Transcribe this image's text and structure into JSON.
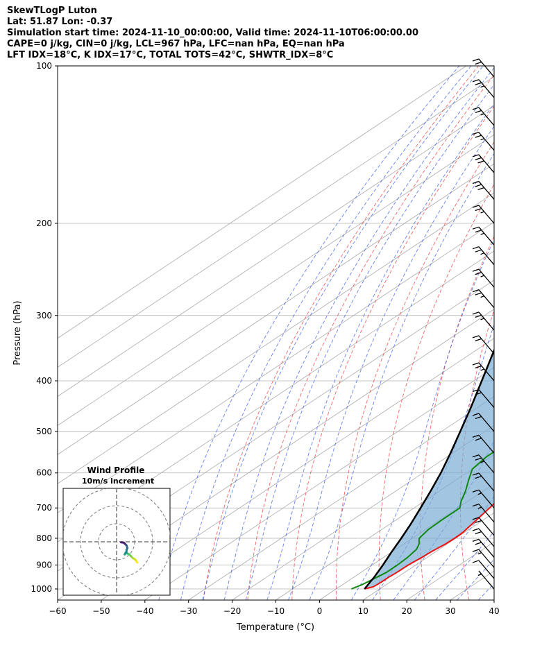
{
  "header": {
    "title": "SkewTLogP Luton",
    "location": "Lat: 51.87   Lon: -0.37",
    "time": "Simulation start time: 2024-11-10_00:00:00, Valid time: 2024-11-10T06:00:00.00",
    "params1": "CAPE=0 j/kg, CIN=0 j/kg, LCL=967 hPa, LFC=nan hPa, EQ=nan hPa",
    "params2": "LFT IDX=18°C, K IDX=17°C, TOTAL TOTS=42°C, SHWTR_IDX=8°C"
  },
  "chart_data": {
    "type": "skewt",
    "xlabel": "Temperature (°C)",
    "ylabel": "Pressure (hPa)",
    "xlim": [
      -60,
      40
    ],
    "ylim": [
      1050,
      100
    ],
    "x_ticks": [
      -60,
      -50,
      -40,
      -30,
      -20,
      -10,
      0,
      10,
      20,
      30,
      40
    ],
    "x_tick_labels": [
      "−60",
      "−50",
      "−40",
      "−30",
      "−20",
      "−10",
      "0",
      "10",
      "20",
      "30",
      "40"
    ],
    "p_ticks": [
      100,
      200,
      300,
      400,
      500,
      600,
      700,
      800,
      900,
      1000
    ],
    "p_tick_labels": [
      "100",
      "200",
      "300",
      "400",
      "500",
      "600",
      "700",
      "800",
      "900",
      "1000"
    ],
    "grid": true,
    "series": [
      {
        "color": "#ee1111",
        "values": [
          [
            1000,
            6.5
          ],
          [
            990,
            7.8
          ],
          [
            970,
            8.0
          ],
          [
            950,
            8.0
          ],
          [
            930,
            8.2
          ],
          [
            900,
            8.3
          ],
          [
            870,
            8.8
          ],
          [
            850,
            9.0
          ],
          [
            820,
            9.6
          ],
          [
            800,
            9.7
          ],
          [
            780,
            9.6
          ],
          [
            750,
            8.8
          ],
          [
            700,
            7.3
          ],
          [
            650,
            5.7
          ],
          [
            600,
            4.5
          ],
          [
            560,
            3.5
          ],
          [
            520,
            2.0
          ],
          [
            480,
            0.2
          ],
          [
            450,
            -1.3
          ],
          [
            400,
            -4.0
          ],
          [
            350,
            -8.0
          ],
          [
            320,
            -11.0
          ],
          [
            300,
            -13.0
          ],
          [
            280,
            -15.0
          ],
          [
            265,
            -15.8
          ],
          [
            250,
            -16.8
          ],
          [
            235,
            -17.5
          ],
          [
            220,
            -18.2
          ],
          [
            210,
            -18.3
          ],
          [
            200,
            -19.0
          ],
          [
            180,
            -20.3
          ],
          [
            160,
            -21.9
          ],
          [
            140,
            -23.7
          ],
          [
            125,
            -26.0
          ],
          [
            110,
            -27.0
          ],
          [
            100,
            -28.0
          ]
        ]
      },
      {
        "color": "#118811",
        "values": [
          [
            1000,
            3.5
          ],
          [
            980,
            4.5
          ],
          [
            960,
            5.0
          ],
          [
            930,
            5.8
          ],
          [
            900,
            5.8
          ],
          [
            870,
            5.5
          ],
          [
            840,
            4.8
          ],
          [
            820,
            3.5
          ],
          [
            800,
            1.6
          ],
          [
            770,
            0.7
          ],
          [
            740,
            0.5
          ],
          [
            700,
            0.5
          ],
          [
            680,
            -1.5
          ],
          [
            650,
            -4.0
          ],
          [
            620,
            -7.0
          ],
          [
            590,
            -10.0
          ],
          [
            560,
            -11.0
          ],
          [
            530,
            -11.0
          ],
          [
            500,
            -11.5
          ],
          [
            470,
            -13.0
          ],
          [
            440,
            -15.0
          ],
          [
            420,
            -15.6
          ],
          [
            400,
            -14.5
          ],
          [
            380,
            -13.0
          ],
          [
            360,
            -12.5
          ],
          [
            340,
            -13.5
          ],
          [
            320,
            -17.0
          ],
          [
            310,
            -20.0
          ],
          [
            290,
            -20.5
          ],
          [
            270,
            -21.5
          ],
          [
            255,
            -21.0
          ],
          [
            240,
            -21.0
          ],
          [
            220,
            -21.5
          ],
          [
            200,
            -24.0
          ],
          [
            180,
            -28.0
          ],
          [
            160,
            -32.5
          ],
          [
            150,
            -33.8
          ],
          [
            140,
            -33.4
          ],
          [
            125,
            -33.3
          ],
          [
            110,
            -33.5
          ],
          [
            100,
            -34.0
          ]
        ]
      },
      {
        "color": "#000000",
        "values": [
          [
            1000,
            6.5
          ],
          [
            967,
            5.3
          ],
          [
            950,
            4.7
          ],
          [
            900,
            2.5
          ],
          [
            850,
            0.0
          ],
          [
            800,
            -2.5
          ],
          [
            750,
            -5.3
          ],
          [
            700,
            -8.5
          ],
          [
            650,
            -12.0
          ],
          [
            600,
            -15.9
          ],
          [
            550,
            -20.5
          ],
          [
            500,
            -25.7
          ],
          [
            450,
            -31.5
          ],
          [
            400,
            -38.2
          ],
          [
            350,
            -45.8
          ],
          [
            300,
            -54.5
          ],
          [
            250,
            -64.5
          ],
          [
            200,
            -76.5
          ],
          [
            150,
            -91.0
          ],
          [
            100,
            -110.0
          ]
        ]
      }
    ],
    "wind_barbs": [
      {
        "p": 1000,
        "speed_kt": 5
      },
      {
        "p": 955,
        "speed_kt": 10
      },
      {
        "p": 910,
        "speed_kt": 15
      },
      {
        "p": 870,
        "speed_kt": 20
      },
      {
        "p": 830,
        "speed_kt": 20
      },
      {
        "p": 790,
        "speed_kt": 20
      },
      {
        "p": 745,
        "speed_kt": 15
      },
      {
        "p": 700,
        "speed_kt": 15
      },
      {
        "p": 650,
        "speed_kt": 20
      },
      {
        "p": 600,
        "speed_kt": 25
      },
      {
        "p": 550,
        "speed_kt": 20
      },
      {
        "p": 500,
        "speed_kt": 20
      },
      {
        "p": 450,
        "speed_kt": 20
      },
      {
        "p": 400,
        "speed_kt": 25
      },
      {
        "p": 355,
        "speed_kt": 20
      },
      {
        "p": 320,
        "speed_kt": 25
      },
      {
        "p": 290,
        "speed_kt": 25
      },
      {
        "p": 265,
        "speed_kt": 25
      },
      {
        "p": 240,
        "speed_kt": 25
      },
      {
        "p": 220,
        "speed_kt": 25
      },
      {
        "p": 200,
        "speed_kt": 25
      },
      {
        "p": 180,
        "speed_kt": 30
      },
      {
        "p": 160,
        "speed_kt": 30
      },
      {
        "p": 145,
        "speed_kt": 25
      },
      {
        "p": 130,
        "speed_kt": 25
      },
      {
        "p": 115,
        "speed_kt": 25
      },
      {
        "p": 105,
        "speed_kt": 20
      }
    ],
    "hodograph": {
      "title": "Wind Profile",
      "subtitle": "10m/s increment",
      "rings_ms": [
        10,
        20,
        30
      ],
      "trace_uv_ms": [
        [
          11.5,
          -11.5
        ],
        [
          10.5,
          -10.0
        ],
        [
          9.0,
          -9.0
        ],
        [
          8.0,
          -8.0
        ],
        [
          7.0,
          -7.0
        ],
        [
          6.0,
          -6.5
        ],
        [
          5.0,
          -6.0
        ],
        [
          4.5,
          -7.0
        ],
        [
          5.5,
          -5.5
        ],
        [
          5.5,
          -4.5
        ],
        [
          6.0,
          -3.5
        ],
        [
          5.5,
          -2.0
        ],
        [
          5.0,
          -1.5
        ],
        [
          4.5,
          -1.0
        ],
        [
          4.0,
          -0.5
        ],
        [
          2.5,
          -0.3
        ]
      ]
    }
  }
}
